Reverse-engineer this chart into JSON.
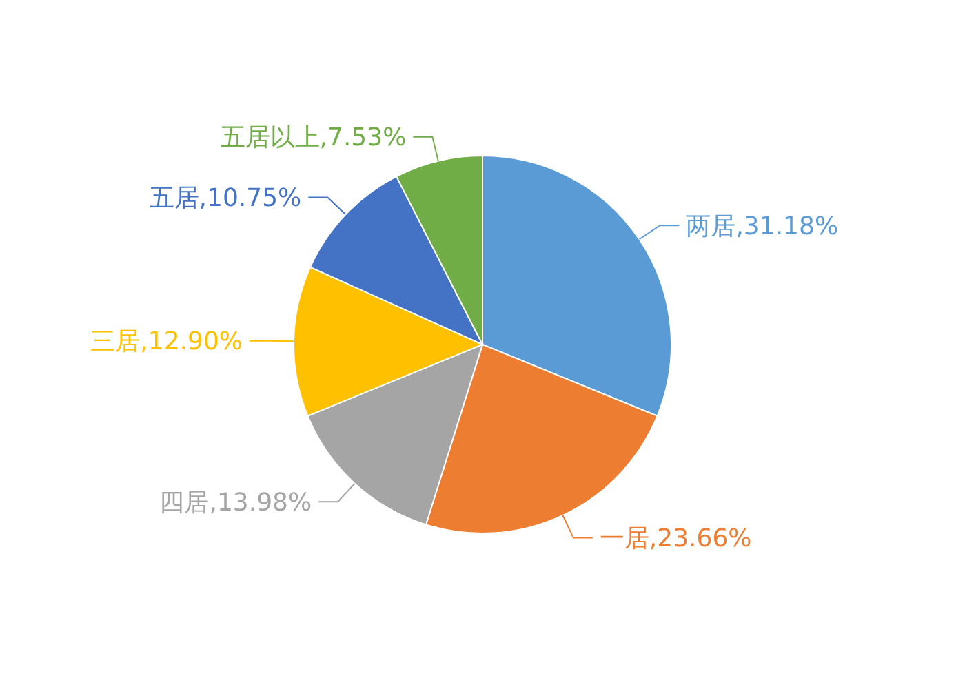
{
  "chart_data": {
    "type": "pie",
    "categories": [
      "两居",
      "一居",
      "四居",
      "三居",
      "五居",
      "五居以上"
    ],
    "values": [
      31.18,
      23.66,
      13.98,
      12.9,
      10.75,
      7.53
    ],
    "colors": [
      "#5b9bd5",
      "#ed7d31",
      "#a5a5a5",
      "#ffc000",
      "#4472c4",
      "#70ad47"
    ],
    "value_labels": [
      ",31.18%",
      ",23.66%",
      ",13.98%",
      ",12.90%",
      ",10.75%",
      ",7.53%"
    ]
  }
}
